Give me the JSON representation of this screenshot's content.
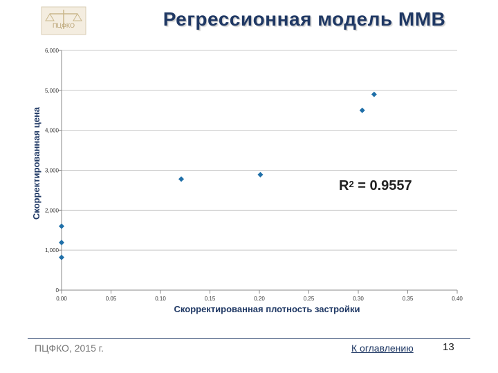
{
  "header": {
    "title": "Регрессионная модель ММВ",
    "logo_text": "ПЦФКО"
  },
  "footer": {
    "left_text": "ПЦФКО, 2015 г.",
    "link_text": "К оглавлению",
    "page_number": "13"
  },
  "annotation": {
    "r2_base": "R",
    "r2_sup": "2",
    "r2_value": " = 0.9557"
  },
  "chart_data": {
    "type": "scatter",
    "title": "",
    "xlabel": "Скорректированная плотность застройки",
    "ylabel": "Скорректированная цена",
    "xlim": [
      0,
      0.4
    ],
    "ylim": [
      0,
      6000
    ],
    "x_ticks": [
      0,
      0.05,
      0.1,
      0.15,
      0.2,
      0.25,
      0.3,
      0.35,
      0.4
    ],
    "x_tick_labels": [
      "0.00",
      "0.05",
      "0.10",
      "0.15",
      "0.20",
      "0.25",
      "0.30",
      "0.35",
      "0.40"
    ],
    "y_ticks": [
      0,
      1000,
      2000,
      3000,
      4000,
      5000,
      6000
    ],
    "y_tick_labels": [
      "0",
      "1,000",
      "2,000",
      "3,000",
      "4,000",
      "5,000",
      "6,000"
    ],
    "grid": "horizontal",
    "marker_color": "#1f6fa8",
    "points": [
      {
        "x": 0.0,
        "y": 820
      },
      {
        "x": 0.0,
        "y": 1190
      },
      {
        "x": 0.0,
        "y": 1600
      },
      {
        "x": 0.121,
        "y": 2780
      },
      {
        "x": 0.201,
        "y": 2890
      },
      {
        "x": 0.304,
        "y": 4500
      },
      {
        "x": 0.316,
        "y": 4900
      }
    ]
  }
}
